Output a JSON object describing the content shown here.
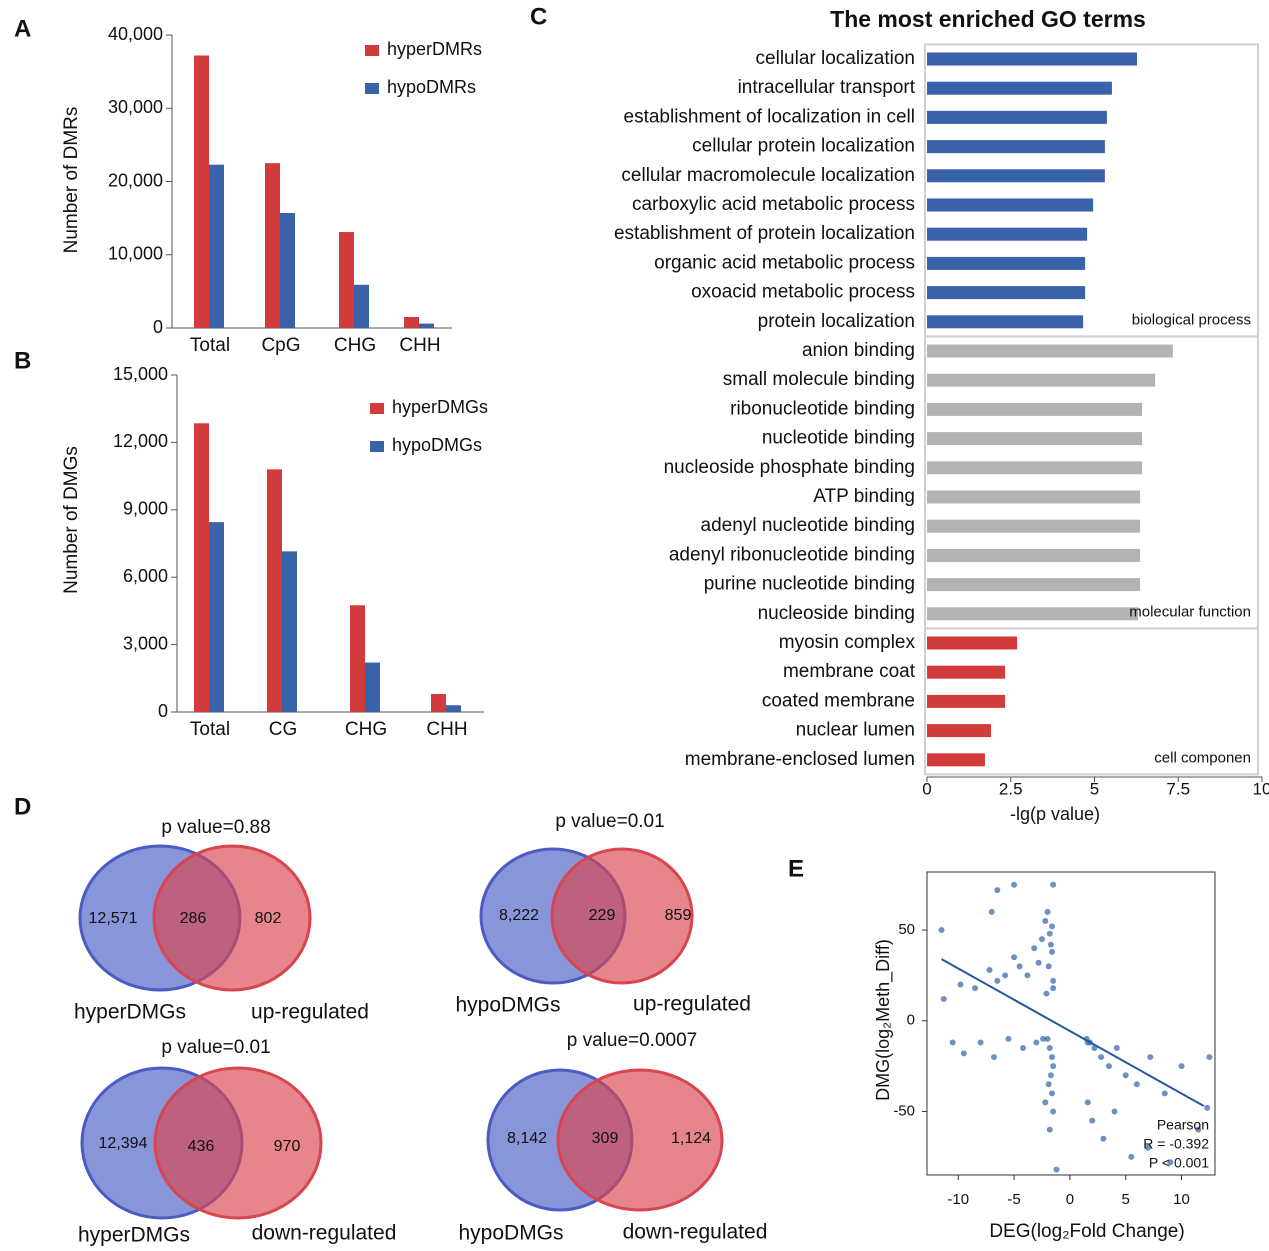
{
  "chart_data": [
    {
      "type": "bar",
      "panel": "A",
      "ylabel": "Number of DMRs",
      "categories": [
        "Total",
        "CpG",
        "CHG",
        "CHH"
      ],
      "series": [
        {
          "name": "hyperDMRs",
          "color": "#d13b3b",
          "values": [
            37200,
            22500,
            13100,
            1500
          ]
        },
        {
          "name": "hypoDMRs",
          "color": "#3a62a8",
          "values": [
            22300,
            15700,
            5900,
            600
          ]
        }
      ],
      "ylim": [
        0,
        40000
      ],
      "yticks": [
        0,
        {
          "value": 10000,
          "label": "10,000"
        },
        {
          "value": 20000,
          "label": "20,000"
        },
        {
          "value": 30000,
          "label": "30,000"
        },
        {
          "value": 40000,
          "label": "40,000"
        }
      ]
    },
    {
      "type": "bar",
      "panel": "B",
      "ylabel": "Number of DMGs",
      "categories": [
        "Total",
        "CG",
        "CHG",
        "CHH"
      ],
      "series": [
        {
          "name": "hyperDMGs",
          "color": "#d13b3b",
          "values": [
            12850,
            10800,
            4750,
            800
          ]
        },
        {
          "name": "hypoDMGs",
          "color": "#3a62a8",
          "values": [
            8450,
            7150,
            2200,
            300
          ]
        }
      ],
      "ylim": [
        0,
        15000
      ],
      "yticks": [
        0,
        {
          "value": 3000,
          "label": "3,000"
        },
        {
          "value": 6000,
          "label": "6,000"
        },
        {
          "value": 9000,
          "label": "9,000"
        },
        {
          "value": 12000,
          "label": "12,000"
        },
        {
          "value": 15000,
          "label": "15,000"
        }
      ]
    },
    {
      "type": "hbar",
      "panel": "C",
      "title": "The most enriched GO terms",
      "xlabel": "-lg(p value)",
      "xlim": [
        0,
        10
      ],
      "xticks": [
        0,
        2.5,
        5,
        7.5,
        10
      ],
      "groups": [
        {
          "name": "biological process",
          "color": "#3a62a8",
          "categories": [
            "cellular localization",
            "intracellular transport",
            "establishment of localization in cell",
            "cellular protein localization",
            "cellular macromolecule localization",
            "carboxylic acid metabolic process",
            "establishment of protein localization",
            "organic acid metabolic process",
            "oxoacid metabolic process",
            "protein localization"
          ],
          "values": [
            6.27,
            5.52,
            5.37,
            5.31,
            5.31,
            4.96,
            4.78,
            4.72,
            4.72,
            4.66
          ]
        },
        {
          "name": "molecular function",
          "color": "#b3b3b3",
          "categories": [
            "anion binding",
            "small molecule binding",
            "ribonucleotide binding",
            "nucleotide binding",
            "nucleoside phosphate binding",
            "ATP binding",
            "adenyl nucleotide binding",
            "adenyl ribonucleotide binding",
            "purine nucleotide binding",
            "nucleoside binding"
          ],
          "values": [
            7.34,
            6.81,
            6.42,
            6.42,
            6.42,
            6.36,
            6.36,
            6.36,
            6.36,
            6.3
          ]
        },
        {
          "name": "cell componen",
          "color": "#d13b3b",
          "categories": [
            "myosin complex",
            "membrane coat",
            "coated membrane",
            "nuclear lumen",
            "membrane-enclosed lumen"
          ],
          "values": [
            2.69,
            2.33,
            2.33,
            1.91,
            1.73
          ]
        }
      ]
    },
    {
      "type": "venn",
      "panel": "D",
      "colors": [
        "#4a5cc4",
        "#d9454f"
      ],
      "diagrams": [
        {
          "title": "p value=0.88",
          "sets": [
            "hyperDMGs",
            "up-regulated"
          ],
          "values": [
            12571,
            286,
            802
          ],
          "value_labels": [
            "12,571",
            "286",
            "802"
          ]
        },
        {
          "title": "p value=0.01",
          "sets": [
            "hypoDMGs",
            "up-regulated"
          ],
          "values": [
            8222,
            229,
            859
          ],
          "value_labels": [
            "8,222",
            "229",
            "859"
          ]
        },
        {
          "title": "p value=0.01",
          "sets": [
            "hyperDMGs",
            "down-regulated"
          ],
          "values": [
            12394,
            436,
            970
          ],
          "value_labels": [
            "12,394",
            "436",
            "970"
          ]
        },
        {
          "title": "p value=0.0007",
          "sets": [
            "hypoDMGs",
            "down-regulated"
          ],
          "values": [
            8142,
            309,
            1124
          ],
          "value_labels": [
            "8,142",
            "309",
            "1,124"
          ]
        }
      ]
    },
    {
      "type": "scatter",
      "panel": "E",
      "color": "#2f64a8",
      "xlabel": "DEG(log₂Fold Change)",
      "ylabel": "DMG(log₂Meth_Diff)",
      "xlim": [
        -12.8,
        13
      ],
      "ylim": [
        -85,
        82
      ],
      "xticks": [
        -10,
        -5,
        0,
        5,
        10
      ],
      "yticks": [
        -50,
        0,
        50
      ],
      "x": [
        -11.5,
        -11.3,
        -9.8,
        -8.5,
        -7.2,
        -6.5,
        -5.8,
        -5.0,
        -4.5,
        -3.8,
        -3.2,
        -2.8,
        -2.5,
        -2.2,
        -2.0,
        -1.8,
        -1.6,
        -1.5,
        -2.1,
        -1.9,
        -1.7,
        -1.6,
        -1.5,
        -2.4,
        -3.0,
        -4.2,
        -5.5,
        -6.8,
        -8.0,
        -9.5,
        -2.0,
        -1.8,
        -1.6,
        -1.5,
        -1.7,
        -1.9,
        -2.2,
        -1.6,
        -1.5,
        -1.8,
        1.5,
        1.8,
        2.2,
        2.8,
        3.5,
        4.2,
        5.0,
        6.0,
        7.2,
        8.5,
        10.0,
        11.5,
        12.5,
        1.6,
        2.0,
        3.0,
        4.0,
        5.5,
        7.0,
        9.0,
        -5.0,
        -1.5,
        -6.5,
        -1.2,
        1.6,
        -7.0,
        12.3,
        -10.5
      ],
      "values": [
        50,
        12,
        20,
        18,
        28,
        22,
        25,
        35,
        30,
        25,
        40,
        32,
        45,
        55,
        60,
        48,
        38,
        22,
        15,
        30,
        42,
        52,
        18,
        -10,
        -12,
        -15,
        -10,
        -20,
        -12,
        -18,
        -10,
        -15,
        -20,
        -25,
        -30,
        -35,
        -45,
        -40,
        -50,
        -60,
        -10,
        -12,
        -15,
        -20,
        -25,
        -15,
        -30,
        -35,
        -20,
        -40,
        -25,
        -60,
        -20,
        -45,
        -55,
        -65,
        -50,
        -75,
        -70,
        -78,
        75,
        75,
        72,
        -82,
        -12,
        60,
        -48,
        -12
      ],
      "fit": {
        "x": [
          -11.5,
          12
        ],
        "values": [
          34,
          -47
        ]
      },
      "annotations": [
        "Pearson",
        "R = -0.392",
        "P < 0.001"
      ]
    }
  ]
}
